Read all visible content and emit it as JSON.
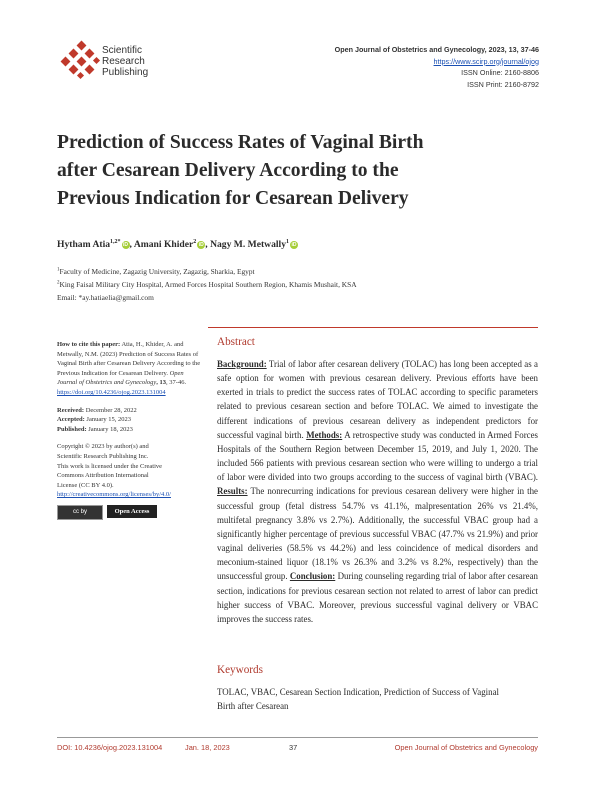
{
  "publisher": {
    "name_lines": [
      "Scientific",
      "Research",
      "Publishing"
    ],
    "logo_icon": "srp-diamond-logo-icon",
    "logo_color": "#c0392b"
  },
  "journal": {
    "citation_line": "Open Journal of Obstetrics and Gynecology, 2023, 13, 37-46",
    "url": "https://www.scirp.org/journal/ojog",
    "issn_online": "ISSN Online: 2160-8806",
    "issn_print": "ISSN Print: 2160-8792"
  },
  "title_lines": [
    "Prediction of Success Rates of Vaginal Birth",
    "after Cesarean Delivery According to the",
    "Previous Indication for Cesarean Delivery"
  ],
  "authors": [
    {
      "name": "Hytham Atia",
      "sup": "1,2*"
    },
    {
      "name": "Amani Khider",
      "sup": "2"
    },
    {
      "name": "Nagy M. Metwally",
      "sup": "1"
    }
  ],
  "author_separator": ",",
  "orcid_label": "iD",
  "affiliations": [
    {
      "sup": "1",
      "text": "Faculty of Medicine, Zagazig University, Zagazig, Sharkia, Egypt"
    },
    {
      "sup": "2",
      "text": "King Faisal Military City Hospital, Armed Forces Hospital Southern Region, Khamis Mushait, KSA"
    }
  ],
  "email_line": "Email: *ay.hatiaelia@gmail.com",
  "sidebar": {
    "cite_label": "How to cite this paper:",
    "cite_text": " Atia, H., Khider, A. and Metwally, N.M. (2023) Prediction of Success Rates of Vaginal Birth after Cesarean Delivery According to the Previous Indication for Cesarean Delivery. ",
    "cite_journal": "Open Journal of Obstetrics and Gynecology",
    "cite_vol": ", 13",
    "cite_pages": ", 37-46.",
    "doi_link": "https://doi.org/10.4236/ojog.2023.131004",
    "received_label": "Received:",
    "received": " December 28, 2022",
    "accepted_label": "Accepted:",
    "accepted": " January 15, 2023",
    "published_label": "Published:",
    "published": " January 18, 2023",
    "copyright_lines": [
      "Copyright © 2023 by author(s) and",
      "Scientific Research Publishing Inc.",
      "This work is licensed under the Creative",
      "Commons Attribution International",
      "License (CC BY 4.0)."
    ],
    "license_link": "http://creativecommons.org/licenses/by/4.0/",
    "cc_badge": "cc by",
    "oa_badge": "Open Access"
  },
  "abstract": {
    "heading": "Abstract",
    "background_label": "Background:",
    "background": " Trial of labor after cesarean delivery (TOLAC) has long been accepted as a safe option for women with previous cesarean delivery. Previous efforts have been exerted in trials to predict the success rates of TOLAC according to specific parameters related to previous cesarean section and before TOLAC. We aimed to investigate the different indications of previous cesarean delivery as independent predictors for successful vaginal birth. ",
    "methods_label": "Methods:",
    "methods": " A retrospective study was conducted in Armed Forces Hospitals of the Southern Region between December 15, 2019, and July 1, 2020. The included 566 patients with previous cesarean section who were willing to undergo a trial of labor were divided into two groups according to the success of vaginal birth (VBAC). ",
    "results_label": "Results:",
    "results": " The nonrecurring indications for previous cesarean delivery were higher in the successful group (fetal distress 54.7% vs 41.1%, malpresentation 26% vs 21.4%, multifetal pregnancy 3.8% vs 2.7%). Additionally, the successful VBAC group had a significantly higher percentage of previous successful VBAC (47.7% vs 21.9%) and prior vaginal deliveries (58.5% vs 44.2%) and less coincidence of medical disorders and meconium-stained liquor (18.1% vs 26.3% and 3.2% vs 8.2%, respectively) than the unsuccessful group. ",
    "conclusion_label": "Conclusion:",
    "conclusion": " During counseling regarding trial of labor after cesarean section, indications for previous cesarean section not related to arrest of labor can predict higher success of VBAC. Moreover, previous successful vaginal delivery or VBAC improves the success rates."
  },
  "keywords": {
    "heading": "Keywords",
    "text": "TOLAC, VBAC, Cesarean Section Indication, Prediction of Success of Vaginal Birth after Cesarean"
  },
  "footer": {
    "doi": "DOI: 10.4236/ojog.2023.131004",
    "date": "Jan. 18, 2023",
    "page": "37",
    "journal": "Open Journal of Obstetrics and Gynecology"
  }
}
